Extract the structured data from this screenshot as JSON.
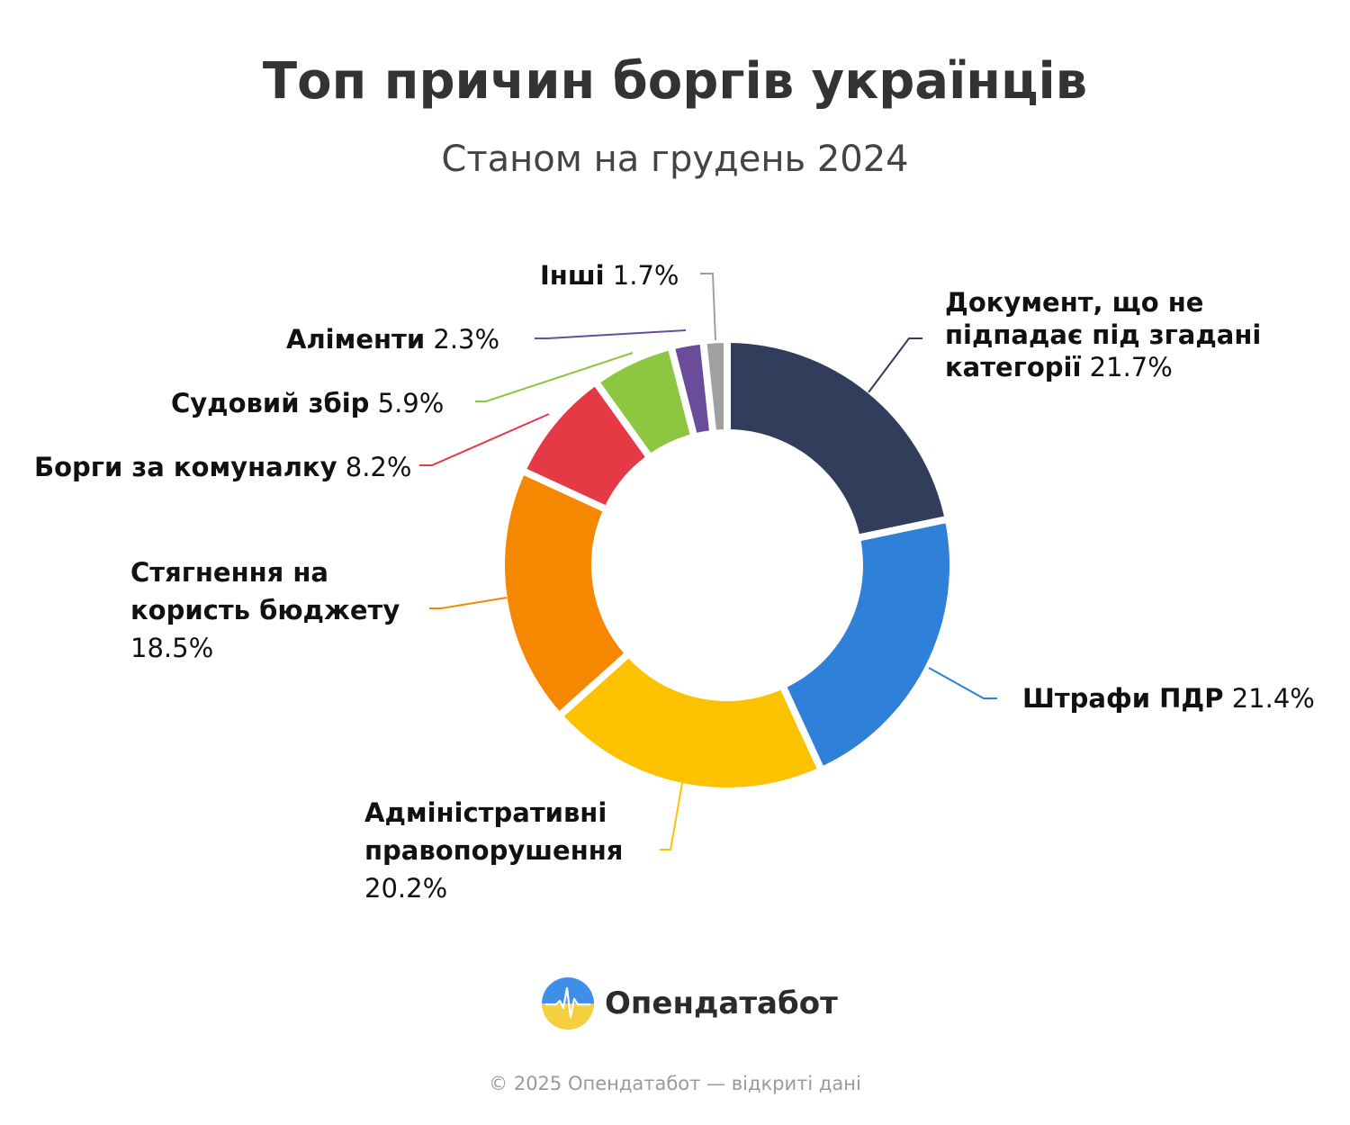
{
  "header": {
    "title": "Топ причин боргів українців",
    "subtitle": "Станом на грудень 2024"
  },
  "chart_data": {
    "type": "pie",
    "variant": "donut",
    "title": "Топ причин боргів українців",
    "subtitle": "Станом на грудень 2024",
    "unit": "%",
    "slices": [
      {
        "name": "Документ, що не підпадає під згадані категорії",
        "value": 21.7,
        "label_lines": [
          "Документ, що не",
          "підпадає під згадані",
          "категорії"
        ],
        "color": "#323d5c"
      },
      {
        "name": "Штрафи ПДР",
        "value": 21.4,
        "label_lines": [
          "Штрафи ПДР"
        ],
        "color": "#2f80d8"
      },
      {
        "name": "Адміністративні правопорушення",
        "value": 20.2,
        "label_lines": [
          "Адміністративні",
          "правопорушення"
        ],
        "color": "#fcc200"
      },
      {
        "name": "Стягнення на користь бюджету",
        "value": 18.5,
        "label_lines": [
          "Стягнення на",
          "користь бюджету"
        ],
        "color": "#f58800"
      },
      {
        "name": "Борги за комуналку",
        "value": 8.2,
        "label_lines": [
          "Борги за комуналку"
        ],
        "color": "#e53946"
      },
      {
        "name": "Судовий збір",
        "value": 5.9,
        "label_lines": [
          "Судовий збір"
        ],
        "color": "#8dc63f"
      },
      {
        "name": "Аліменти",
        "value": 2.3,
        "label_lines": [
          "Аліменти"
        ],
        "color": "#6b4c9a"
      },
      {
        "name": "Інші",
        "value": 1.7,
        "label_lines": [
          "Інші"
        ],
        "color": "#a0a0a0"
      }
    ],
    "legend": "none",
    "data_labels": "outside with leader lines"
  },
  "brand": {
    "name": "Опендатабот",
    "logo_icon": "opendatabot-logo-icon"
  },
  "footer": {
    "text": "© 2025 Опендатабот — відкриті дані"
  }
}
